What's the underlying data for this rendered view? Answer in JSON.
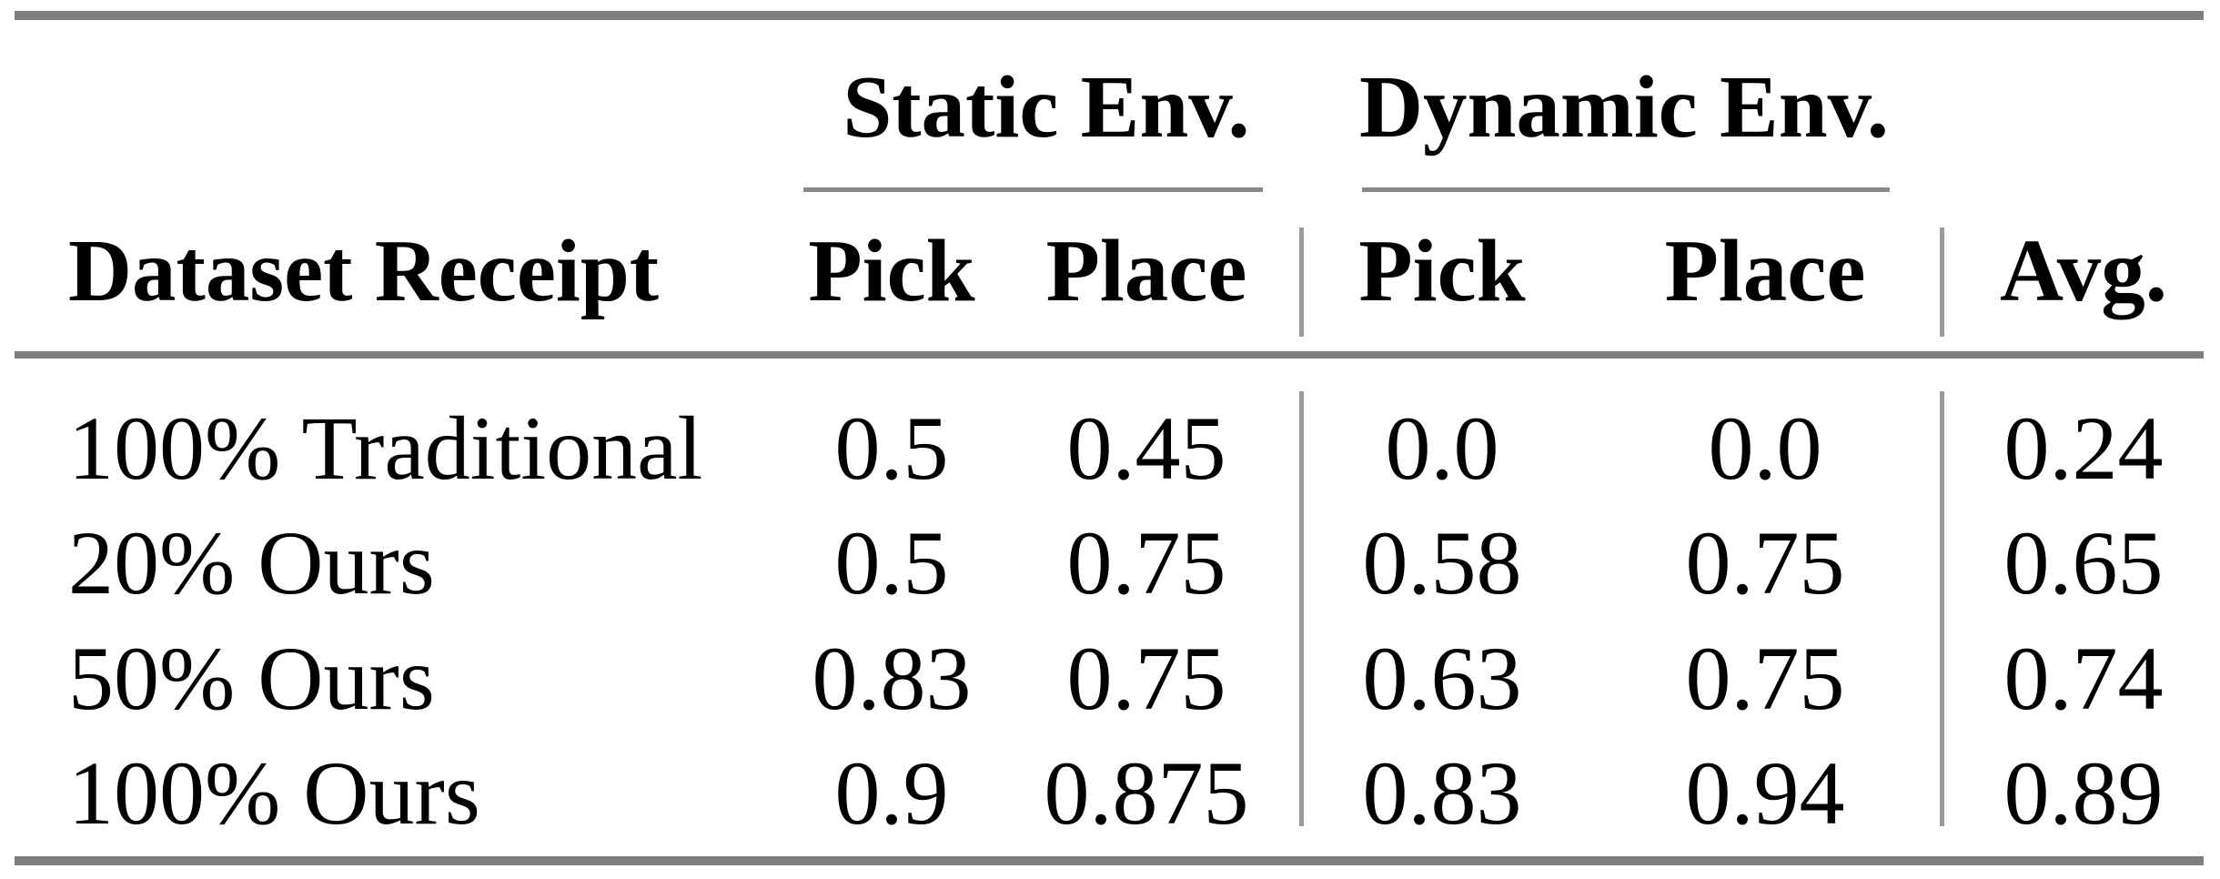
{
  "table": {
    "group_headers": {
      "static": "Static Env.",
      "dynamic": "Dynamic Env."
    },
    "columns": {
      "dataset": "Dataset Receipt",
      "static_pick": "Pick",
      "static_place": "Place",
      "dynamic_pick": "Pick",
      "dynamic_place": "Place",
      "avg": "Avg."
    },
    "rows": [
      {
        "dataset": "100% Traditional",
        "static_pick": "0.5",
        "static_place": "0.45",
        "dynamic_pick": "0.0",
        "dynamic_place": "0.0",
        "avg": "0.24"
      },
      {
        "dataset": "20% Ours",
        "static_pick": "0.5",
        "static_place": "0.75",
        "dynamic_pick": "0.58",
        "dynamic_place": "0.75",
        "avg": "0.65"
      },
      {
        "dataset": "50% Ours",
        "static_pick": "0.83",
        "static_place": "0.75",
        "dynamic_pick": "0.63",
        "dynamic_place": "0.75",
        "avg": "0.74"
      },
      {
        "dataset": "100% Ours",
        "static_pick": "0.9",
        "static_place": "0.875",
        "dynamic_pick": "0.83",
        "dynamic_place": "0.94",
        "avg": "0.89"
      }
    ]
  },
  "colors": {
    "heavy_rule": "#7e7e7e",
    "light_rule": "#8a8a8a",
    "divider_rule": "#9a9a9a",
    "text": "#000000",
    "background": "#ffffff"
  }
}
